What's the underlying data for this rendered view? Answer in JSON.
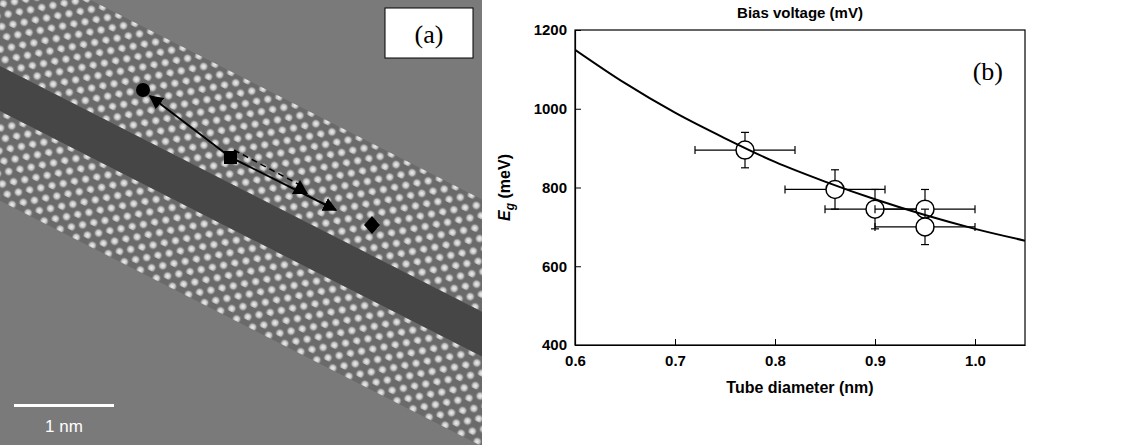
{
  "chart_data": {
    "type": "scatter",
    "title": "Bias voltage (mV)",
    "x_label": "Tube diameter (nm)",
    "y_label": "Eg (meV)",
    "panel_label": "(b)",
    "xlim": [
      0.6,
      1.05
    ],
    "ylim": [
      400,
      1200
    ],
    "xticks": [
      0.6,
      0.7,
      0.8,
      0.9,
      {
        "value": 1,
        "label": "1.0"
      }
    ],
    "yticks": [
      400,
      600,
      800,
      1000,
      1200
    ],
    "grid": false,
    "series": [
      {
        "type": "scatter",
        "marker": "circle",
        "color": "#000000",
        "x": [
          0.77,
          0.86,
          0.9,
          0.95,
          0.95
        ],
        "values": [
          895,
          795,
          745,
          745,
          700
        ],
        "x_error": [
          0.05,
          0.05,
          0.05,
          0.05,
          0.05
        ],
        "y_error": [
          45,
          50,
          50,
          50,
          45
        ]
      },
      {
        "type": "line",
        "line_style": "solid",
        "color": "#000000",
        "x": [
          0.6,
          0.65,
          0.7,
          0.75,
          0.8,
          0.85,
          0.9,
          0.95,
          1.0,
          1.05
        ],
        "values": [
          1150,
          1065,
          990,
          925,
          865,
          815,
          770,
          730,
          695,
          665
        ]
      }
    ]
  },
  "image_panel": {
    "label": "(a)",
    "scale_bar_label": "1 nm"
  }
}
